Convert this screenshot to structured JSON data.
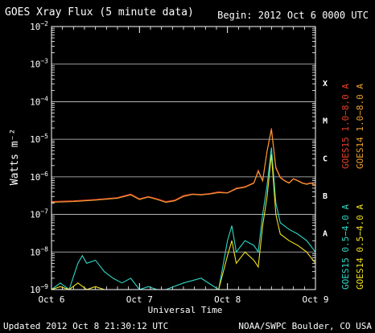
{
  "chart_data": {
    "type": "line",
    "title": "GOES Xray Flux (5 minute data)",
    "begin_label": "Begin:  2012 Oct 6 0000 UTC",
    "ylabel": "Watts m⁻²",
    "xlabel": "Universal Time",
    "footer_left": "Updated 2012 Oct  8 21:30:12 UTC",
    "footer_right": "NOAA/SWPC Boulder, CO USA",
    "y_scale": "log",
    "y_range": [
      1e-09,
      0.01
    ],
    "y_ticks": [
      {
        "value": 0.01,
        "base": "10",
        "exp": "−2"
      },
      {
        "value": 0.001,
        "base": "10",
        "exp": "−3"
      },
      {
        "value": 0.0001,
        "base": "10",
        "exp": "−4"
      },
      {
        "value": 1e-05,
        "base": "10",
        "exp": "−5"
      },
      {
        "value": 1e-06,
        "base": "10",
        "exp": "−6"
      },
      {
        "value": 1e-07,
        "base": "10",
        "exp": "−7"
      },
      {
        "value": 1e-08,
        "base": "10",
        "exp": "−8"
      },
      {
        "value": 1e-09,
        "base": "10",
        "exp": "−9"
      }
    ],
    "x_range_days": [
      0,
      3
    ],
    "x_ticks": [
      "Oct 6",
      "Oct 7",
      "Oct 8",
      "Oct 9"
    ],
    "flare_classes": [
      {
        "label": "X",
        "value": 0.00032
      },
      {
        "label": "M",
        "value": 3.2e-05
      },
      {
        "label": "C",
        "value": 3.2e-06
      },
      {
        "label": "B",
        "value": 3.2e-07
      },
      {
        "label": "A",
        "value": 3.2e-08
      }
    ],
    "legend": {
      "long": [
        {
          "label": "GOES15 1.0−8.0 A",
          "color": "#e8402a"
        },
        {
          "label": "GOES14 1.0−8.0 A",
          "color": "#f0a030"
        }
      ],
      "short": [
        {
          "label": "GOES15 0.5−4.0 A",
          "color": "#30d8c8"
        },
        {
          "label": "GOES14 0.5−4.0 A",
          "color": "#f0e020"
        }
      ]
    },
    "series": [
      {
        "name": "GOES15 1.0−8.0 A",
        "color": "#e8402a",
        "x": [
          0,
          0.25,
          0.5,
          0.75,
          0.9,
          1.0,
          1.1,
          1.2,
          1.3,
          1.4,
          1.5,
          1.6,
          1.7,
          1.8,
          1.9,
          2.0,
          2.1,
          2.2,
          2.3,
          2.35,
          2.4,
          2.45,
          2.5,
          2.55,
          2.6,
          2.65,
          2.7,
          2.75,
          2.8,
          2.85,
          2.9,
          2.95,
          3.0
        ],
        "y": [
          2.2e-07,
          2.3e-07,
          2.5e-07,
          2.8e-07,
          3.5e-07,
          2.6e-07,
          3e-07,
          2.6e-07,
          2.2e-07,
          2.4e-07,
          3.2e-07,
          3.5e-07,
          3.4e-07,
          3.6e-07,
          4e-07,
          3.8e-07,
          5e-07,
          5.5e-07,
          7e-07,
          1.5e-06,
          8e-07,
          5e-06,
          2e-05,
          1.8e-06,
          1e-06,
          8e-07,
          7e-07,
          9e-07,
          8e-07,
          7e-07,
          6.5e-07,
          7e-07,
          6e-07
        ]
      },
      {
        "name": "GOES14 1.0−8.0 A",
        "color": "#f0a030",
        "x": [
          0,
          0.25,
          0.5,
          0.75,
          0.9,
          1.0,
          1.1,
          1.2,
          1.3,
          1.4,
          1.5,
          1.6,
          1.7,
          1.8,
          1.9,
          2.0,
          2.1,
          2.2,
          2.3,
          2.35,
          2.4,
          2.45,
          2.5,
          2.55,
          2.6,
          2.65,
          2.7,
          2.75,
          2.8,
          2.85,
          2.9,
          2.95,
          3.0
        ],
        "y": [
          2.1e-07,
          2.2e-07,
          2.4e-07,
          2.7e-07,
          3.3e-07,
          2.5e-07,
          2.9e-07,
          2.5e-07,
          2.1e-07,
          2.3e-07,
          3e-07,
          3.4e-07,
          3.3e-07,
          3.5e-07,
          3.8e-07,
          3.7e-07,
          4.8e-07,
          5.3e-07,
          6.8e-07,
          1.4e-06,
          7.8e-07,
          4.8e-06,
          1.8e-05,
          1.7e-06,
          9.5e-07,
          7.8e-07,
          6.8e-07,
          8.8e-07,
          7.8e-07,
          6.8e-07,
          6.3e-07,
          6.8e-07,
          5.8e-07
        ]
      },
      {
        "name": "GOES15 0.5−4.0 A",
        "color": "#30d8c8",
        "x": [
          0,
          0.1,
          0.2,
          0.3,
          0.35,
          0.4,
          0.5,
          0.6,
          0.7,
          0.8,
          0.9,
          1.0,
          1.1,
          1.2,
          1.3,
          1.5,
          1.7,
          1.9,
          2.0,
          2.05,
          2.1,
          2.2,
          2.3,
          2.35,
          2.4,
          2.45,
          2.5,
          2.55,
          2.6,
          2.7,
          2.8,
          2.9,
          3.0
        ],
        "y": [
          1e-09,
          1.5e-09,
          1e-09,
          5e-09,
          8e-09,
          5e-09,
          6e-09,
          3e-09,
          2e-09,
          1.5e-09,
          2e-09,
          1e-09,
          1.2e-09,
          1e-09,
          1e-09,
          1.5e-09,
          2e-09,
          1e-09,
          2e-08,
          5e-08,
          1e-08,
          2e-08,
          1.5e-08,
          1e-08,
          1e-07,
          6e-07,
          6e-06,
          2e-07,
          6e-08,
          4e-08,
          3e-08,
          2e-08,
          1e-08
        ]
      },
      {
        "name": "GOES14 0.5−4.0 A",
        "color": "#f0e020",
        "x": [
          0,
          0.1,
          0.2,
          0.3,
          0.4,
          0.5,
          0.6,
          0.7,
          0.8,
          0.9,
          1.0,
          1.2,
          1.5,
          1.7,
          1.9,
          2.0,
          2.05,
          2.1,
          2.2,
          2.3,
          2.35,
          2.4,
          2.45,
          2.5,
          2.55,
          2.6,
          2.7,
          2.8,
          2.9,
          3.0
        ],
        "y": [
          1e-09,
          1.2e-09,
          1e-09,
          1.5e-09,
          1e-09,
          1.2e-09,
          1e-09,
          1e-09,
          1e-09,
          1e-09,
          1e-09,
          1e-09,
          1e-09,
          1e-09,
          1e-09,
          8e-09,
          2e-08,
          5e-09,
          1e-08,
          6e-09,
          4e-09,
          5e-08,
          3e-07,
          4e-06,
          1e-07,
          3e-08,
          2e-08,
          1.5e-08,
          1e-08,
          5e-09
        ]
      }
    ]
  }
}
